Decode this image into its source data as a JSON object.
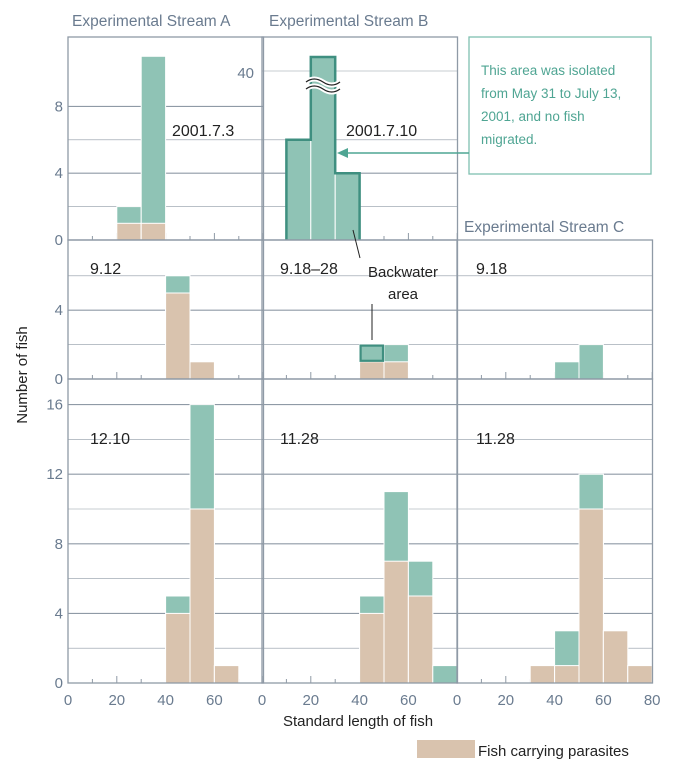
{
  "colors": {
    "total": "#8fc3b5",
    "parasite": "#d9c3ae",
    "frame": "#8f9aa6",
    "grid": "#8f9aa6",
    "axis_text": "#6a7b8f",
    "text": "#222222",
    "highlight": "#3f8f80",
    "note_border": "#7fc0b0",
    "note_text": "#4fa593"
  },
  "header": {
    "stream_a": "Experimental Stream A",
    "stream_b": "Experimental Stream B",
    "stream_c": "Experimental Stream C"
  },
  "note": {
    "lines": [
      "This area was isolated",
      "from May 31 to July 13,",
      "2001, and no fish",
      "migrated."
    ]
  },
  "annotations": {
    "backwater_line1": "Backwater",
    "backwater_line2": "area"
  },
  "legend": {
    "label": "Fish carrying parasites"
  },
  "chart_data": {
    "type": "bar",
    "ylabel": "Number of fish",
    "xlabel": "Standard length of fish",
    "x_ticks": [
      "0",
      "20",
      "40",
      "60"
    ],
    "x_ticks_last": [
      "0",
      "20",
      "40",
      "60",
      "80"
    ],
    "panels": [
      {
        "id": "a1",
        "date": "2001.7.3",
        "row": 0,
        "col": 0,
        "ylim": [
          0,
          10
        ],
        "y_ticks": [
          "0",
          "4",
          "8"
        ],
        "bins": [
          {
            "x0": 20,
            "x1": 30,
            "total": 2,
            "parasite": 1
          },
          {
            "x0": 30,
            "x1": 40,
            "total": 11,
            "parasite": 1
          }
        ]
      },
      {
        "id": "b1",
        "date": "2001.7.10",
        "row": 0,
        "col": 1,
        "ylim": [
          0,
          10
        ],
        "y_ticks": [
          "40"
        ],
        "axis_break": true,
        "bins": [
          {
            "x0": 10,
            "x1": 20,
            "total": 6,
            "parasite": 0
          },
          {
            "x0": 20,
            "x1": 30,
            "total": 45,
            "parasite": 0
          },
          {
            "x0": 30,
            "x1": 40,
            "total": 4,
            "parasite": 0
          }
        ]
      },
      {
        "id": "a2",
        "date": "9.12",
        "row": 1,
        "col": 0,
        "ylim": [
          0,
          7
        ],
        "y_ticks": [
          "0",
          "4"
        ],
        "bins": [
          {
            "x0": 40,
            "x1": 50,
            "total": 6,
            "parasite": 5
          },
          {
            "x0": 50,
            "x1": 60,
            "total": 1,
            "parasite": 1
          }
        ]
      },
      {
        "id": "b2",
        "date": "9.18‒28",
        "row": 1,
        "col": 1,
        "ylim": [
          0,
          7
        ],
        "y_ticks": [],
        "bins": [
          {
            "x0": 40,
            "x1": 50,
            "total": 2,
            "parasite": 1
          },
          {
            "x0": 50,
            "x1": 60,
            "total": 2,
            "parasite": 1
          }
        ]
      },
      {
        "id": "c2",
        "date": "9.18",
        "row": 1,
        "col": 2,
        "ylim": [
          0,
          7
        ],
        "y_ticks": [],
        "bins": [
          {
            "x0": 40,
            "x1": 50,
            "total": 1,
            "parasite": 0
          },
          {
            "x0": 50,
            "x1": 60,
            "total": 2,
            "parasite": 0
          }
        ]
      },
      {
        "id": "a3",
        "date": "12.10",
        "row": 2,
        "col": 0,
        "ylim": [
          0,
          18
        ],
        "y_ticks": [
          "0",
          "4",
          "8",
          "12",
          "16"
        ],
        "bins": [
          {
            "x0": 40,
            "x1": 50,
            "total": 5,
            "parasite": 4
          },
          {
            "x0": 50,
            "x1": 60,
            "total": 16,
            "parasite": 10
          },
          {
            "x0": 60,
            "x1": 70,
            "total": 1,
            "parasite": 1
          }
        ]
      },
      {
        "id": "b3",
        "date": "11.28",
        "row": 2,
        "col": 1,
        "ylim": [
          0,
          18
        ],
        "y_ticks": [],
        "bins": [
          {
            "x0": 40,
            "x1": 50,
            "total": 5,
            "parasite": 4
          },
          {
            "x0": 50,
            "x1": 60,
            "total": 11,
            "parasite": 7
          },
          {
            "x0": 60,
            "x1": 70,
            "total": 7,
            "parasite": 5
          },
          {
            "x0": 70,
            "x1": 80,
            "total": 1,
            "parasite": 0
          }
        ]
      },
      {
        "id": "c3",
        "date": "11.28",
        "row": 2,
        "col": 2,
        "ylim": [
          0,
          18
        ],
        "y_ticks": [],
        "bins": [
          {
            "x0": 30,
            "x1": 40,
            "total": 1,
            "parasite": 1
          },
          {
            "x0": 40,
            "x1": 50,
            "total": 3,
            "parasite": 1
          },
          {
            "x0": 50,
            "x1": 60,
            "total": 12,
            "parasite": 10
          },
          {
            "x0": 60,
            "x1": 70,
            "total": 3,
            "parasite": 3
          },
          {
            "x0": 70,
            "x1": 80,
            "total": 1,
            "parasite": 1
          }
        ]
      }
    ]
  }
}
